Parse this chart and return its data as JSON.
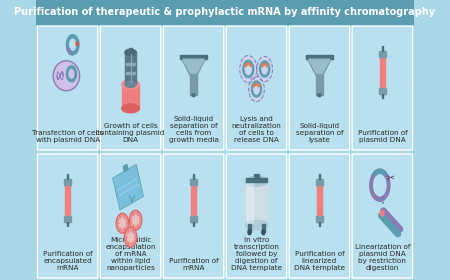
{
  "title": "Purification of therapeutic & prophylactic mRNA by affinity chromatography",
  "bg_color": "#a8d8e8",
  "cell_bg": "#b8e0ee",
  "cell_border": "#ffffff",
  "salmon": "#f08080",
  "teal": "#5b9db0",
  "purple": "#8b7bb5",
  "gray": "#7a9aaa",
  "dark_gray": "#4a7080",
  "orange_red": "#e8706a",
  "top_labels": [
    "Transfection of cells\nwith plasmid DNA",
    "Growth of cells\ncontaining plasmid\nDNA",
    "Solid-liquid\nseparation of\ncells from\ngrowth media",
    "Lysis and\nneutralization\nof cells to\nrelease DNA",
    "Solid-liquid\nseparation of\nlysate",
    "Purification of\nplasmid DNA"
  ],
  "bottom_labels": [
    "Purification of\nencapsulated\nmRNA",
    "Microfluidic\nencapsulation\nof mRNA\nwithin lipid\nnanoparticles",
    "Purification of\nmRNA",
    "In vitro\ntranscription\nfollowed by\ndigestion of\nDNA template",
    "Purification of\nlinearized\nDNA template",
    "Linearization of\nplasmid DNA\nby restriction\ndigestion"
  ],
  "n_cols": 6,
  "n_rows": 2,
  "text_color": "#2a2a2a",
  "font_size": 5.2,
  "title_font_size": 7.0
}
